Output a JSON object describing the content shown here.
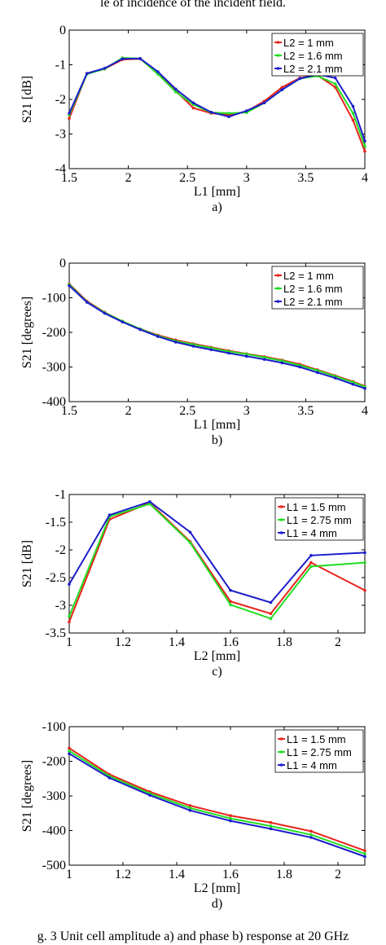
{
  "top_text": "le of incidence of the incident field.",
  "caption_text": "g. 3 Unit cell amplitude a) and phase b) response at 20 GHz",
  "chart_data": [
    {
      "type": "line",
      "panel_label": "a)",
      "xlabel": "L1 [mm]",
      "ylabel": "S21 [dB]",
      "xlim": [
        1.5,
        4
      ],
      "ylim": [
        -4,
        0
      ],
      "xticks": [
        1.5,
        2,
        2.5,
        3,
        3.5,
        4
      ],
      "yticks": [
        0,
        -1,
        -2,
        -3,
        -4
      ],
      "legend_position": "top-right",
      "x": [
        1.5,
        1.65,
        1.8,
        1.95,
        2.1,
        2.25,
        2.4,
        2.55,
        2.7,
        2.85,
        3.0,
        3.15,
        3.3,
        3.45,
        3.6,
        3.75,
        3.9,
        4.0
      ],
      "series": [
        {
          "name": "L2 = 1 mm",
          "color": "#e8231c",
          "values": [
            -2.55,
            -1.25,
            -1.12,
            -0.85,
            -0.83,
            -1.25,
            -1.75,
            -2.25,
            -2.4,
            -2.45,
            -2.35,
            -2.05,
            -1.65,
            -1.38,
            -1.3,
            -1.65,
            -2.6,
            -3.5
          ]
        },
        {
          "name": "L2 = 1.6 mm",
          "color": "#22dd22",
          "values": [
            -2.45,
            -1.27,
            -1.12,
            -0.8,
            -0.82,
            -1.27,
            -1.78,
            -2.15,
            -2.38,
            -2.4,
            -2.38,
            -2.1,
            -1.72,
            -1.4,
            -1.32,
            -1.55,
            -2.4,
            -3.35
          ]
        },
        {
          "name": "L2 = 2.1 mm",
          "color": "#1c1ccc",
          "values": [
            -2.4,
            -1.25,
            -1.1,
            -0.83,
            -0.82,
            -1.2,
            -1.7,
            -2.1,
            -2.37,
            -2.5,
            -2.33,
            -2.1,
            -1.72,
            -1.4,
            -1.28,
            -1.38,
            -2.2,
            -3.2
          ]
        }
      ]
    },
    {
      "type": "line",
      "panel_label": "b)",
      "xlabel": "L1 [mm]",
      "ylabel": "S21 [degrees]",
      "xlim": [
        1.5,
        4
      ],
      "ylim": [
        -400,
        0
      ],
      "xticks": [
        1.5,
        2,
        2.5,
        3,
        3.5,
        4
      ],
      "yticks": [
        0,
        -100,
        -200,
        -300,
        -400
      ],
      "legend_position": "top-right",
      "x": [
        1.5,
        1.65,
        1.8,
        1.95,
        2.1,
        2.25,
        2.4,
        2.55,
        2.7,
        2.85,
        3.0,
        3.15,
        3.3,
        3.45,
        3.6,
        3.75,
        3.9,
        4.0
      ],
      "series": [
        {
          "name": "L2 = 1 mm",
          "color": "#e8231c",
          "values": [
            -60,
            -110,
            -142,
            -168,
            -190,
            -208,
            -222,
            -233,
            -243,
            -253,
            -262,
            -270,
            -280,
            -292,
            -308,
            -325,
            -342,
            -355
          ]
        },
        {
          "name": "L2 = 1.6 mm",
          "color": "#22dd22",
          "values": [
            -62,
            -112,
            -143,
            -168,
            -190,
            -210,
            -225,
            -235,
            -245,
            -255,
            -263,
            -272,
            -282,
            -295,
            -310,
            -327,
            -344,
            -357
          ]
        },
        {
          "name": "L2 = 2.1 mm",
          "color": "#1c1ccc",
          "values": [
            -65,
            -113,
            -145,
            -170,
            -192,
            -212,
            -228,
            -240,
            -250,
            -260,
            -269,
            -278,
            -288,
            -300,
            -316,
            -332,
            -350,
            -362
          ]
        }
      ]
    },
    {
      "type": "line",
      "panel_label": "c)",
      "xlabel": "L2 [mm]",
      "ylabel": "S21 [dB]",
      "xlim": [
        1,
        2.1
      ],
      "ylim": [
        -3.5,
        -1
      ],
      "xticks": [
        1,
        1.2,
        1.4,
        1.6,
        1.8,
        2
      ],
      "yticks": [
        -1,
        -1.5,
        -2,
        -2.5,
        -3,
        -3.5
      ],
      "legend_position": "top-right",
      "x": [
        1.0,
        1.15,
        1.3,
        1.45,
        1.6,
        1.75,
        1.9,
        2.1
      ],
      "series": [
        {
          "name": "L1 = 1.5 mm",
          "color": "#e8231c",
          "values": [
            -3.3,
            -1.45,
            -1.15,
            -1.85,
            -2.93,
            -3.15,
            -2.23,
            -2.73
          ]
        },
        {
          "name": "L1 = 2.75 mm",
          "color": "#22dd22",
          "values": [
            -3.2,
            -1.4,
            -1.17,
            -1.87,
            -2.99,
            -3.24,
            -2.3,
            -2.23
          ]
        },
        {
          "name": "L1 = 4 mm",
          "color": "#1c1ccc",
          "values": [
            -2.62,
            -1.37,
            -1.13,
            -1.68,
            -2.73,
            -2.95,
            -2.1,
            -2.05
          ]
        }
      ]
    },
    {
      "type": "line",
      "panel_label": "d)",
      "xlabel": "L2 [mm]",
      "ylabel": "S21 [degrees]",
      "xlim": [
        1,
        2.1
      ],
      "ylim": [
        -500,
        -100
      ],
      "xticks": [
        1,
        1.2,
        1.4,
        1.6,
        1.8,
        2
      ],
      "yticks": [
        -100,
        -200,
        -300,
        -400,
        -500
      ],
      "legend_position": "top-right",
      "x": [
        1.0,
        1.15,
        1.3,
        1.45,
        1.6,
        1.75,
        1.9,
        2.1
      ],
      "series": [
        {
          "name": "L1 = 1.5 mm",
          "color": "#e8231c",
          "values": [
            -162,
            -238,
            -288,
            -328,
            -357,
            -377,
            -402,
            -458
          ]
        },
        {
          "name": "L1 = 2.75 mm",
          "color": "#22dd22",
          "values": [
            -170,
            -243,
            -293,
            -335,
            -365,
            -387,
            -412,
            -467
          ]
        },
        {
          "name": "L1 = 4 mm",
          "color": "#1c1ccc",
          "values": [
            -178,
            -248,
            -298,
            -342,
            -372,
            -395,
            -420,
            -475
          ]
        }
      ]
    }
  ]
}
